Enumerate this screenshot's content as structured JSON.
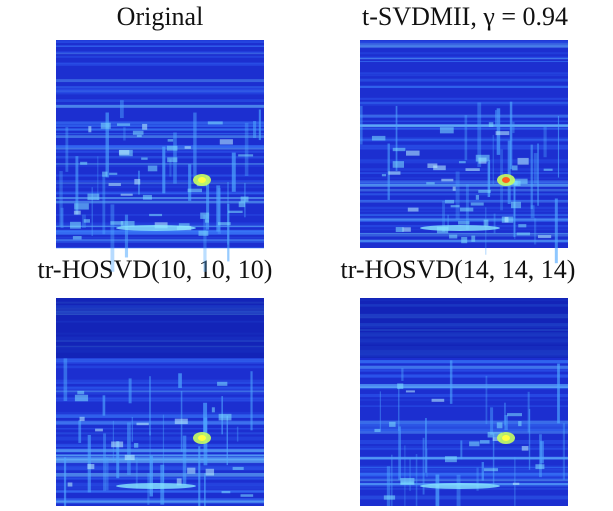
{
  "panels": [
    {
      "title": "Original"
    },
    {
      "title": "t-SVDMII, γ = 0.94"
    },
    {
      "title": "tr-HOSVD(10, 10, 10)"
    },
    {
      "title": "tr-HOSVD(14, 14, 14)"
    }
  ]
}
